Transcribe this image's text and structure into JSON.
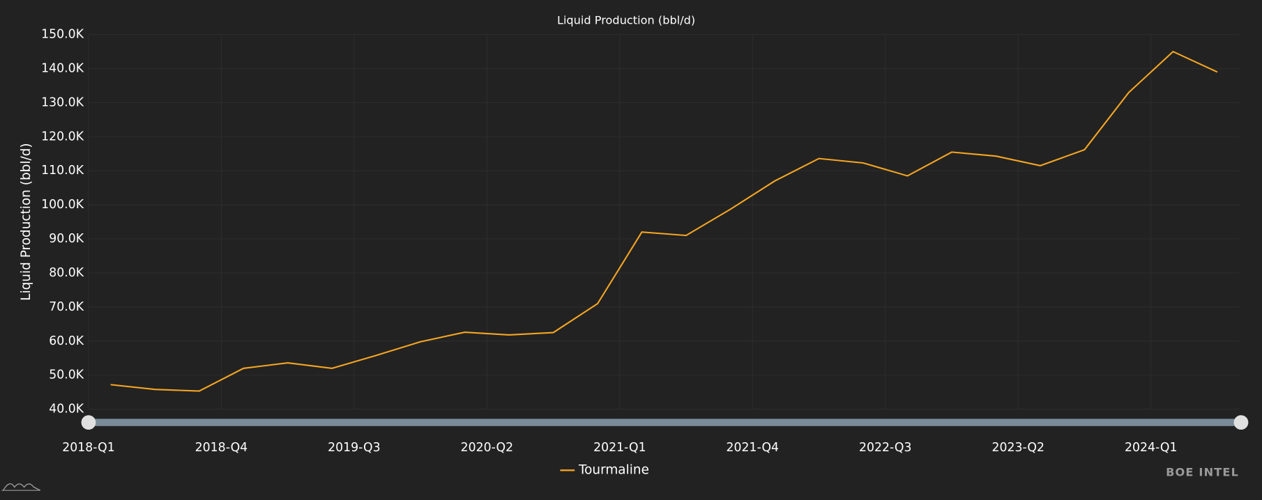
{
  "chart_data": {
    "type": "line",
    "title": "Liquid Production (bbl/d)",
    "y_label": "Liquid Production (bbl/d)",
    "watermark": "BOE INTEL",
    "categories": [
      "2018-Q1",
      null,
      null,
      "2018-Q4",
      null,
      null,
      "2019-Q3",
      null,
      null,
      "2020-Q2",
      null,
      null,
      "2021-Q1",
      null,
      null,
      "2021-Q4",
      null,
      null,
      "2022-Q3",
      null,
      null,
      "2023-Q2",
      null,
      null,
      "2024-Q1",
      null
    ],
    "series": [
      {
        "name": "Tourmaline",
        "color": "#f5a623",
        "values": [
          47200,
          45800,
          45300,
          52000,
          53600,
          52000,
          55800,
          59800,
          62600,
          61800,
          62500,
          71000,
          92000,
          91000,
          98700,
          107000,
          113600,
          112300,
          108500,
          115500,
          114300,
          111500,
          116200,
          133000,
          145000,
          139000
        ]
      }
    ],
    "ylim": [
      40000,
      150000
    ],
    "yticks": [
      {
        "value": 40000,
        "label": "40.0K"
      },
      {
        "value": 50000,
        "label": "50.0K"
      },
      {
        "value": 60000,
        "label": "60.0K"
      },
      {
        "value": 70000,
        "label": "70.0K"
      },
      {
        "value": 80000,
        "label": "80.0K"
      },
      {
        "value": 90000,
        "label": "90.0K"
      },
      {
        "value": 100000,
        "label": "100.0K"
      },
      {
        "value": 110000,
        "label": "110.0K"
      },
      {
        "value": 120000,
        "label": "120.0K"
      },
      {
        "value": 130000,
        "label": "130.0K"
      },
      {
        "value": 140000,
        "label": "140.0K"
      },
      {
        "value": 150000,
        "label": "150.0K"
      }
    ],
    "grid": true
  }
}
